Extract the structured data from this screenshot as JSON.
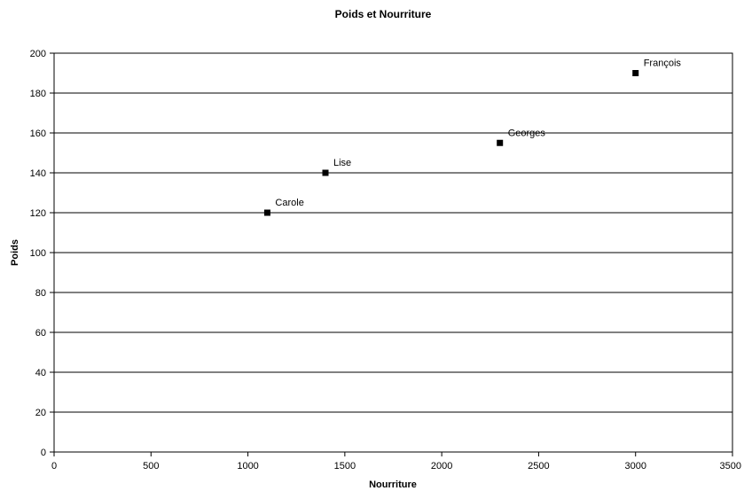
{
  "chart_data": {
    "type": "scatter",
    "title": "Poids et Nourriture",
    "xlabel": "Nourriture",
    "ylabel": "Poids",
    "xlim": [
      0,
      3500
    ],
    "ylim": [
      0,
      200
    ],
    "x_ticks": [
      "0",
      "500",
      "1000",
      "1500",
      "2000",
      "2500",
      "3000",
      "3500"
    ],
    "y_ticks": [
      "0",
      "20",
      "40",
      "60",
      "80",
      "100",
      "120",
      "140",
      "160",
      "180",
      "200"
    ],
    "grid": "horizontal",
    "legend": "none",
    "marker_color": "#000000",
    "points": [
      {
        "label": "Carole",
        "x": 1100,
        "y": 120
      },
      {
        "label": "Lise",
        "x": 1400,
        "y": 140
      },
      {
        "label": "Georges",
        "x": 2300,
        "y": 155
      },
      {
        "label": "François",
        "x": 3000,
        "y": 190
      }
    ]
  }
}
